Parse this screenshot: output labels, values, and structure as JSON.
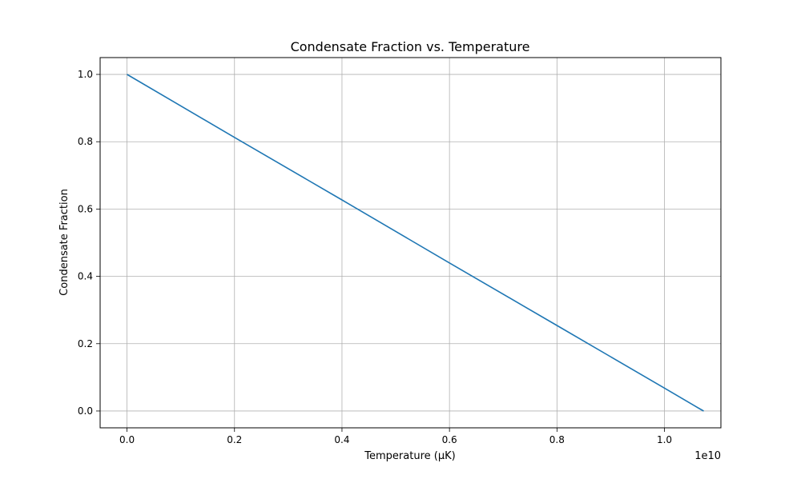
{
  "chart_data": {
    "type": "line",
    "title": "Condensate Fraction vs. Temperature",
    "xlabel": "Temperature (μK)",
    "ylabel": "Condensate Fraction",
    "x_offset_label": "1e10",
    "xlim": [
      -0.05,
      1.105
    ],
    "ylim": [
      -0.05,
      1.05
    ],
    "xticks": [
      0.0,
      0.2,
      0.4,
      0.6,
      0.8,
      1.0
    ],
    "xtick_labels": [
      "0.0",
      "0.2",
      "0.4",
      "0.6",
      "0.8",
      "1.0"
    ],
    "yticks": [
      0.0,
      0.2,
      0.4,
      0.6,
      0.8,
      1.0
    ],
    "ytick_labels": [
      "0.0",
      "0.2",
      "0.4",
      "0.6",
      "0.8",
      "1.0"
    ],
    "grid": true,
    "series": [
      {
        "color": "#1f77b4",
        "x": [
          0.0,
          0.2,
          0.4,
          0.6,
          0.8,
          1.0,
          1.065,
          1.073
        ],
        "y": [
          1.0,
          0.813,
          0.627,
          0.44,
          0.254,
          0.068,
          0.007,
          0.0
        ]
      }
    ]
  }
}
